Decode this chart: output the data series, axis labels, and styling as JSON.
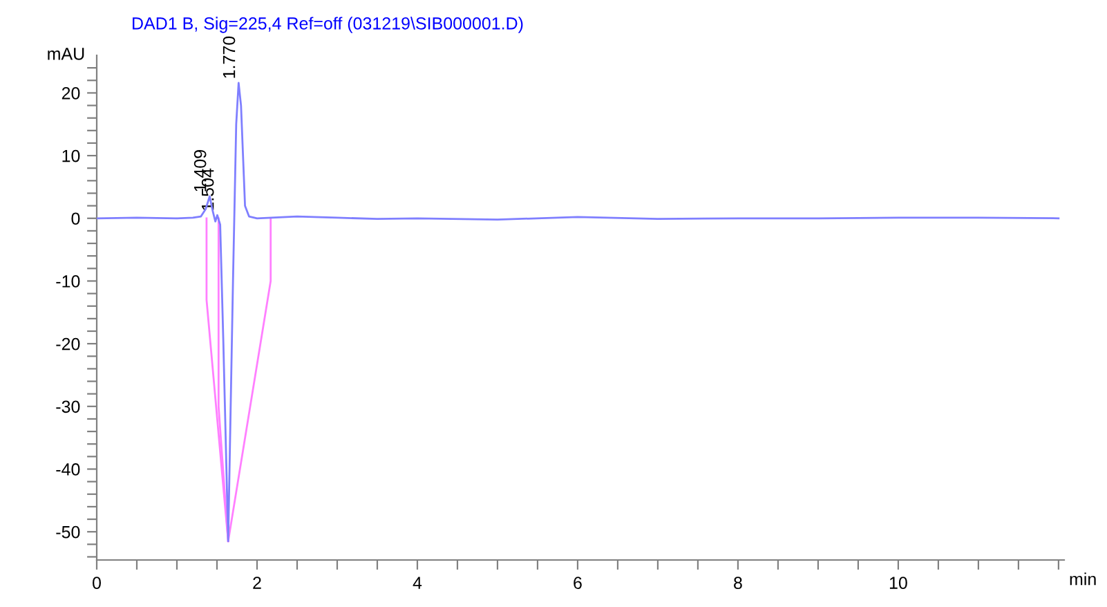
{
  "chart_data": {
    "type": "line",
    "title": "DAD1 B, Sig=225,4 Ref=off (031219\\SIB000001.D)",
    "xlabel": "min",
    "ylabel": "mAU",
    "series": [
      {
        "color": "#7f7fff",
        "x": [
          0,
          0.5,
          1.0,
          1.2,
          1.3,
          1.36,
          1.409,
          1.45,
          1.48,
          1.504,
          1.54,
          1.58,
          1.64,
          1.7,
          1.74,
          1.77,
          1.8,
          1.85,
          1.9,
          2.0,
          2.5,
          3.0,
          3.5,
          4,
          5,
          6,
          7,
          8,
          9,
          10,
          11,
          12
        ],
        "values": [
          0,
          0.1,
          0,
          0.1,
          0.3,
          1.5,
          3.5,
          1.0,
          -0.5,
          0.5,
          -1,
          -20,
          -51.5,
          -10,
          15,
          21.6,
          18,
          2,
          0.3,
          0,
          0.3,
          0.1,
          -0.1,
          0,
          -0.2,
          0.2,
          -0.1,
          0,
          0,
          0.1,
          0.1,
          0
        ]
      },
      {
        "color": "#ff7fff",
        "x": [
          1.37,
          1.37,
          1.64
        ],
        "values": [
          0,
          -13,
          -51.5
        ]
      },
      {
        "color": "#ff7fff",
        "x": [
          1.52,
          1.52,
          1.64
        ],
        "values": [
          0,
          -30,
          -51.5
        ]
      },
      {
        "color": "#ff7fff",
        "x": [
          2.17,
          2.17,
          1.64
        ],
        "values": [
          0,
          -10,
          -51.5
        ]
      }
    ],
    "annotations": [
      {
        "text": "1.409",
        "x": 1.409,
        "y": 3.5
      },
      {
        "text": "1.504",
        "x": 1.504,
        "y": 0.5
      },
      {
        "text": "1.770",
        "x": 1.77,
        "y": 21.6
      }
    ],
    "xlim": [
      0,
      12.07
    ],
    "ylim": [
      -54.5,
      26
    ],
    "xticks": [
      0,
      {
        "value": 0.5,
        "label": null
      },
      {
        "value": 1,
        "label": null
      },
      {
        "value": 1.5,
        "label": null
      },
      2,
      {
        "value": 2.5,
        "label": null
      },
      {
        "value": 3,
        "label": null
      },
      {
        "value": 3.5,
        "label": null
      },
      4,
      {
        "value": 4.5,
        "label": null
      },
      {
        "value": 5,
        "label": null
      },
      {
        "value": 5.5,
        "label": null
      },
      6,
      {
        "value": 6.5,
        "label": null
      },
      {
        "value": 7,
        "label": null
      },
      {
        "value": 7.5,
        "label": null
      },
      8,
      {
        "value": 8.5,
        "label": null
      },
      {
        "value": 9,
        "label": null
      },
      {
        "value": 9.5,
        "label": null
      },
      10,
      {
        "value": 10.5,
        "label": null
      },
      {
        "value": 11,
        "label": null
      },
      {
        "value": 11.5,
        "label": null
      },
      {
        "value": 12,
        "label": null
      }
    ],
    "yticks": [
      {
        "value": -54,
        "label": null
      },
      {
        "value": -52,
        "label": null
      },
      -50,
      {
        "value": -48,
        "label": null
      },
      {
        "value": -46,
        "label": null
      },
      {
        "value": -44,
        "label": null
      },
      {
        "value": -42,
        "label": null
      },
      -40,
      {
        "value": -38,
        "label": null
      },
      {
        "value": -36,
        "label": null
      },
      {
        "value": -34,
        "label": null
      },
      {
        "value": -32,
        "label": null
      },
      -30,
      {
        "value": -28,
        "label": null
      },
      {
        "value": -26,
        "label": null
      },
      {
        "value": -24,
        "label": null
      },
      {
        "value": -22,
        "label": null
      },
      -20,
      {
        "value": -18,
        "label": null
      },
      {
        "value": -16,
        "label": null
      },
      {
        "value": -14,
        "label": null
      },
      {
        "value": -12,
        "label": null
      },
      -10,
      {
        "value": -8,
        "label": null
      },
      {
        "value": -6,
        "label": null
      },
      {
        "value": -4,
        "label": null
      },
      {
        "value": -2,
        "label": null
      },
      0,
      {
        "value": 2,
        "label": null
      },
      {
        "value": 4,
        "label": null
      },
      {
        "value": 6,
        "label": null
      },
      {
        "value": 8,
        "label": null
      },
      10,
      {
        "value": 12,
        "label": null
      },
      {
        "value": 14,
        "label": null
      },
      {
        "value": 16,
        "label": null
      },
      {
        "value": 18,
        "label": null
      },
      20,
      {
        "value": 22,
        "label": null
      },
      {
        "value": 24,
        "label": null
      }
    ],
    "grid": false,
    "legend": false,
    "marker": "none",
    "line_style": "solid"
  }
}
